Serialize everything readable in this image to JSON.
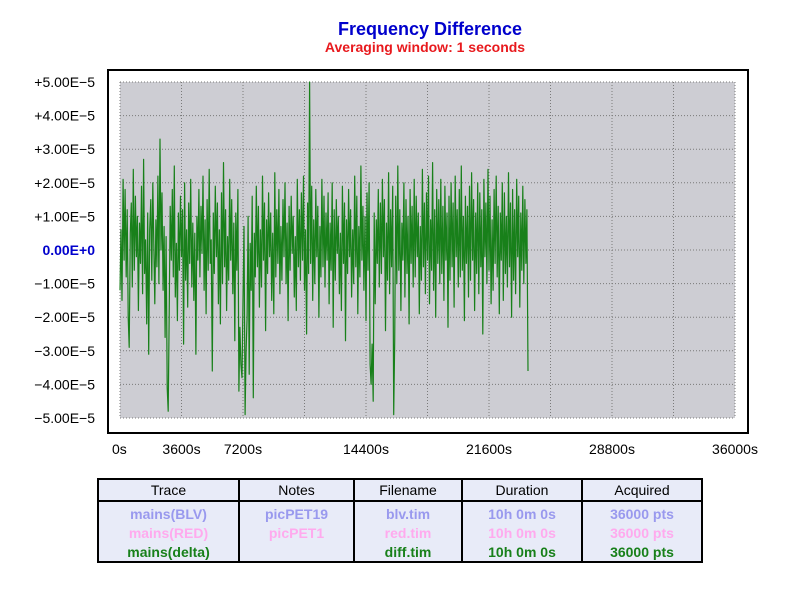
{
  "chart_data": {
    "type": "line",
    "title": "Frequency Difference",
    "subtitle": "Averaging window: 1 seconds",
    "xlabel": "",
    "ylabel": "",
    "xlim": [
      0,
      36000
    ],
    "ylim": [
      -5e-05,
      5e-05
    ],
    "x_ticks": [
      "0s",
      "3600s",
      "7200s",
      "14400s",
      "21600s",
      "28800s",
      "36000s"
    ],
    "x_tick_values": [
      0,
      3600,
      7200,
      14400,
      21600,
      28800,
      36000
    ],
    "y_ticks": [
      "+5.00E−5",
      "+4.00E−5",
      "+3.00E−5",
      "+2.00E−5",
      "+1.00E−5",
      "0.00E+0",
      "−1.00E−5",
      "−2.00E−5",
      "−3.00E−5",
      "−4.00E−5",
      "−5.00E−5"
    ],
    "y_tick_values": [
      5e-05,
      4e-05,
      3e-05,
      2e-05,
      1e-05,
      0,
      -1e-05,
      -2e-05,
      -3e-05,
      -4e-05,
      -5e-05
    ],
    "grid": true,
    "series": [
      {
        "name": "mains(delta)",
        "color": "#18801a",
        "x_start": 0,
        "x_step": 60,
        "values_units": "1e-6",
        "values": [
          -12,
          6,
          -15,
          21,
          -3,
          18,
          -8,
          12,
          -20,
          -29,
          5,
          14,
          -11,
          24,
          -6,
          16,
          -2,
          10,
          -18,
          8,
          -4,
          19,
          -13,
          27,
          -7,
          3,
          -22,
          11,
          -31,
          6,
          15,
          -9,
          20,
          2,
          -16,
          9,
          -5,
          22,
          -10,
          33,
          0,
          17,
          -12,
          7,
          -26,
          4,
          -41,
          -48,
          -19,
          13,
          -3,
          18,
          -8,
          25,
          -14,
          2,
          -21,
          11,
          -6,
          16,
          -2,
          12,
          -28,
          20,
          -9,
          6,
          -17,
          14,
          -4,
          21,
          -11,
          8,
          -15,
          5,
          -31,
          10,
          -3,
          18,
          -8,
          13,
          -1,
          22,
          -12,
          9,
          -19,
          15,
          -6,
          24,
          -4,
          3,
          -36,
          11,
          -7,
          19,
          -2,
          14,
          -16,
          6,
          -22,
          17,
          -10,
          26,
          -5,
          12,
          -18,
          4,
          -9,
          21,
          -3,
          15,
          -13,
          8,
          -27,
          11,
          -6,
          18,
          -42,
          -23,
          -34,
          -38,
          -15,
          7,
          -49,
          -30,
          -20,
          10,
          -37,
          2,
          -12,
          16,
          -44,
          5,
          -8,
          19,
          -5,
          13,
          -17,
          6,
          -11,
          22,
          -3,
          14,
          -24,
          9,
          -7,
          17,
          -2,
          11,
          -15,
          5,
          -19,
          23,
          -8,
          12,
          -4,
          18,
          -13,
          7,
          -9,
          15,
          -2,
          20,
          -10,
          8,
          -21,
          13,
          -6,
          16,
          -1,
          10,
          -14,
          4,
          -18,
          21,
          -5,
          12,
          -9,
          17,
          -3,
          22,
          -12,
          6,
          -25,
          14,
          -7,
          50,
          -4,
          19,
          -15,
          9,
          -10,
          18,
          -2,
          13,
          -20,
          7,
          -8,
          21,
          -5,
          16,
          -11,
          11,
          -3,
          17,
          -16,
          8,
          -6,
          20,
          -23,
          12,
          -9,
          15,
          -1,
          10,
          -13,
          5,
          -18,
          19,
          -4,
          14,
          -27,
          9,
          -7,
          18,
          -2,
          12,
          -14,
          6,
          -10,
          22,
          -5,
          16,
          -19,
          7,
          -8,
          25,
          -3,
          13,
          -12,
          10,
          -21,
          17,
          -6,
          20,
          -34,
          -40,
          -28,
          -45,
          11,
          -16,
          9,
          -4,
          18,
          -11,
          14,
          -7,
          21,
          -2,
          15,
          -24,
          8,
          -9,
          23,
          -13,
          12,
          -5,
          19,
          -49,
          -27,
          16,
          -10,
          25,
          -6,
          12,
          -18,
          8,
          -3,
          20,
          -14,
          15,
          -7,
          10,
          -22,
          18,
          -4,
          13,
          -11,
          21,
          -8,
          16,
          -2,
          11,
          -19,
          7,
          -9,
          24,
          -5,
          14,
          -13,
          17,
          -3,
          22,
          -16,
          9,
          -6,
          26,
          -12,
          12,
          -20,
          18,
          -4,
          15,
          -10,
          21,
          -7,
          13,
          -15,
          19,
          -3,
          11,
          -23,
          16,
          -9,
          20,
          -5,
          14,
          -17,
          22,
          -2,
          12,
          -11,
          18,
          -8,
          25,
          -6,
          10,
          -21,
          16,
          -4,
          13,
          -14,
          19,
          -9,
          23,
          -3,
          15,
          -18,
          11,
          -7,
          20,
          -13,
          17,
          -5,
          12,
          -25,
          21,
          -2,
          14,
          -10,
          24,
          -6,
          16,
          -16,
          9,
          -12,
          18,
          -4,
          22,
          -8,
          13,
          -19,
          11,
          -3,
          20,
          -15,
          17,
          -7,
          10,
          -11,
          23,
          -5,
          14,
          -20,
          18,
          -9,
          12,
          -13,
          21,
          -2,
          16,
          -17,
          11,
          -6,
          19,
          -10,
          15,
          -4,
          12,
          -36
        ]
      }
    ]
  },
  "table": {
    "headers": [
      "Trace",
      "Notes",
      "Filename",
      "Duration",
      "Acquired"
    ],
    "rows": [
      {
        "color": "#9999ee",
        "cells": [
          "mains(BLV)",
          "picPET19",
          "blv.tim",
          "10h 0m 0s",
          "36000 pts"
        ]
      },
      {
        "color": "#ffaaee",
        "cells": [
          "mains(RED)",
          "picPET1",
          "red.tim",
          "10h 0m 0s",
          "36000 pts"
        ]
      },
      {
        "color": "#18801a",
        "cells": [
          "mains(delta)",
          "",
          "diff.tim",
          "10h 0m 0s",
          "36000 pts"
        ]
      }
    ]
  },
  "colors": {
    "plot_background": "#cdcdd3",
    "grid": "#7a7a7a",
    "zero_label": "#0000cc",
    "title": "#0000cc",
    "subtitle": "#e8191d"
  }
}
